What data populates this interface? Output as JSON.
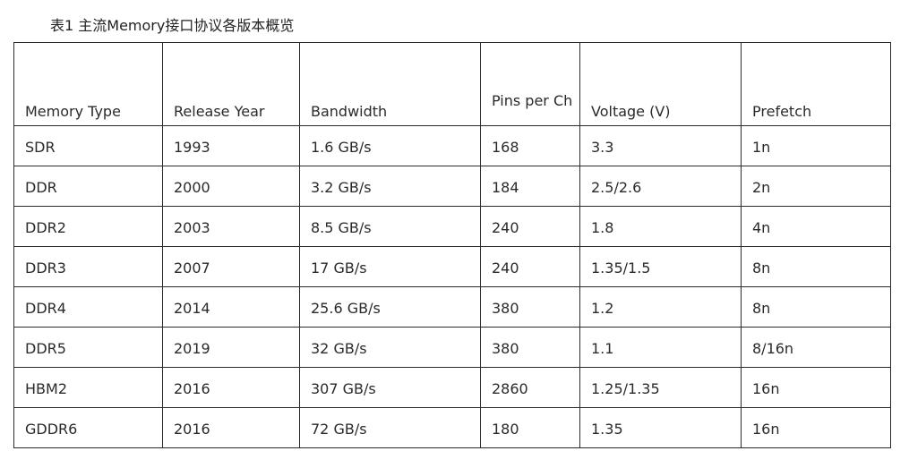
{
  "caption": "表1 主流Memory接口协议各版本概览",
  "table": {
    "headers": [
      "Memory Type",
      "Release Year",
      "Bandwidth",
      "Pins per Ch",
      "Voltage (V)",
      "Prefetch"
    ],
    "rows": [
      [
        "SDR",
        "1993",
        "1.6 GB/s",
        "168",
        "3.3",
        "1n"
      ],
      [
        "DDR",
        "2000",
        "3.2 GB/s",
        "184",
        "2.5/2.6",
        "2n"
      ],
      [
        "DDR2",
        "2003",
        "8.5 GB/s",
        "240",
        "1.8",
        "4n"
      ],
      [
        "DDR3",
        "2007",
        "17 GB/s",
        "240",
        "1.35/1.5",
        "8n"
      ],
      [
        "DDR4",
        "2014",
        "25.6 GB/s",
        "380",
        "1.2",
        "8n"
      ],
      [
        "DDR5",
        "2019",
        "32 GB/s",
        "380",
        "1.1",
        "8/16n"
      ],
      [
        "HBM2",
        "2016",
        "307 GB/s",
        "2860",
        "1.25/1.35",
        "16n"
      ],
      [
        "GDDR6",
        "2016",
        "72 GB/s",
        "180",
        "1.35",
        "16n"
      ]
    ]
  }
}
